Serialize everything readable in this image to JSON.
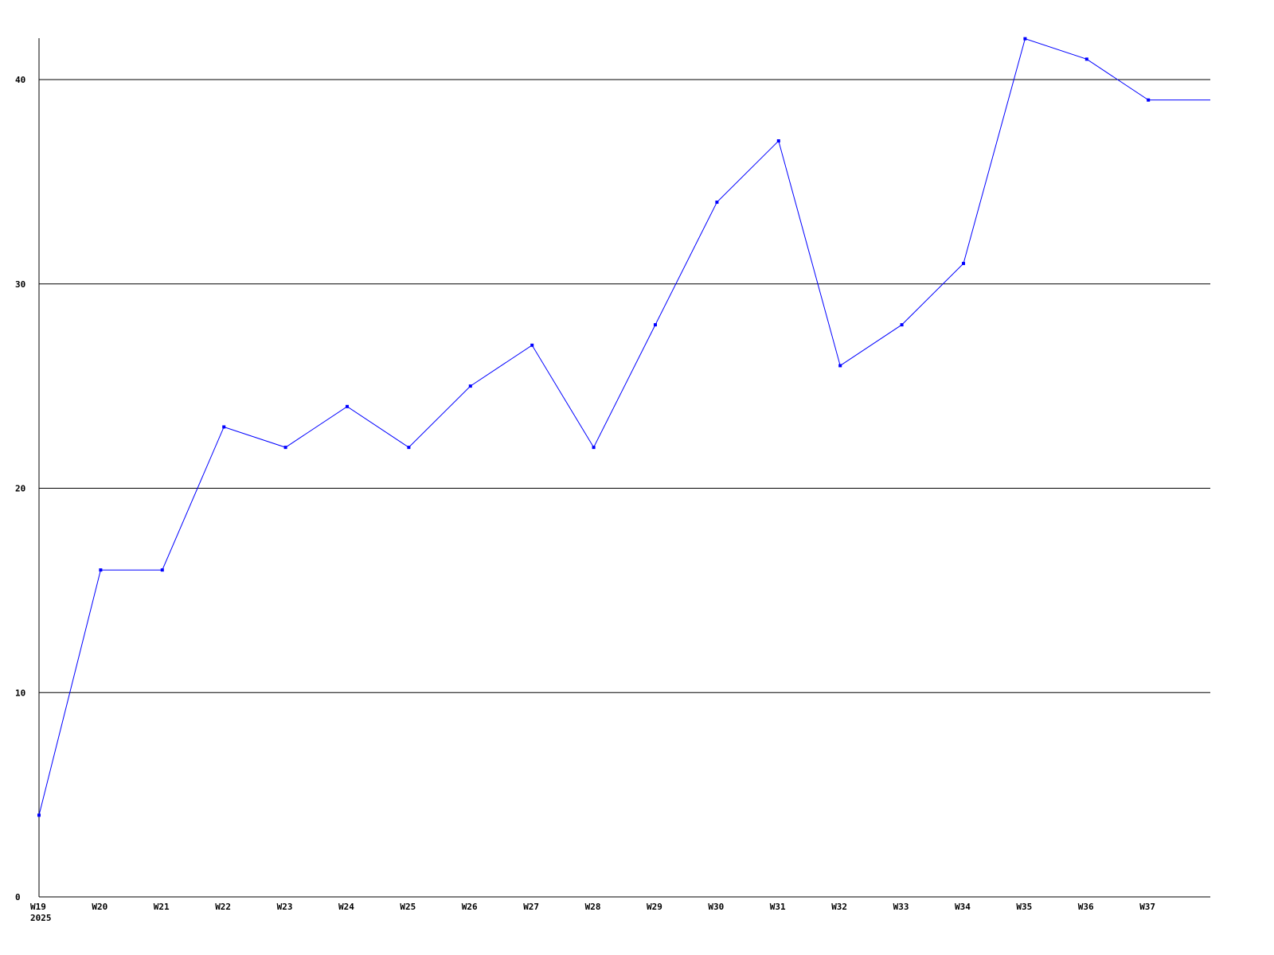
{
  "chart_data": {
    "type": "line",
    "categories": [
      "W19",
      "W20",
      "W21",
      "W22",
      "W23",
      "W24",
      "W25",
      "W26",
      "W27",
      "W28",
      "W29",
      "W30",
      "W31",
      "W32",
      "W33",
      "W34",
      "W35",
      "W36",
      "W37"
    ],
    "x_sublabel": "2025",
    "series": [
      {
        "values": [
          4,
          16,
          16,
          23,
          22,
          24,
          22,
          25,
          27,
          22,
          28,
          34,
          37,
          26,
          28,
          31,
          42,
          41,
          39
        ],
        "color": "#0000ff"
      }
    ],
    "ylim": [
      0,
      42
    ],
    "yticks": [
      0,
      10,
      20,
      30,
      40
    ],
    "grid": true,
    "title": "",
    "xlabel": "",
    "ylabel": ""
  }
}
